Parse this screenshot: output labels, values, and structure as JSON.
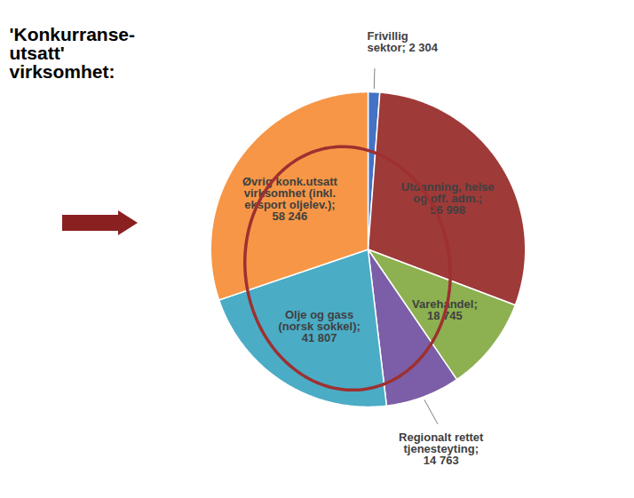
{
  "chart_data": {
    "type": "pie",
    "title": "'Konkurranse-\nutsatt'\nvirksomhet:",
    "categories": [
      "Frivillig\nsektor; 2 304",
      "Utdanning, helse\nog off. adm.;\n56 998",
      "Varehandel;\n18 745",
      "Regionalt rettet\ntjenesteyting;\n14 763",
      "Olje og gass\n(norsk sokkel);\n41 807",
      "Øvrig konk.utsatt\nvirksomhet (inkl.\neksport oljelev.);\n58 246"
    ],
    "values": [
      2304,
      56998,
      18745,
      14763,
      41807,
      58246
    ],
    "colors": [
      "#4472C4",
      "#9E3A38",
      "#8DB050",
      "#7B5EA7",
      "#4BACC6",
      "#F79646"
    ]
  }
}
